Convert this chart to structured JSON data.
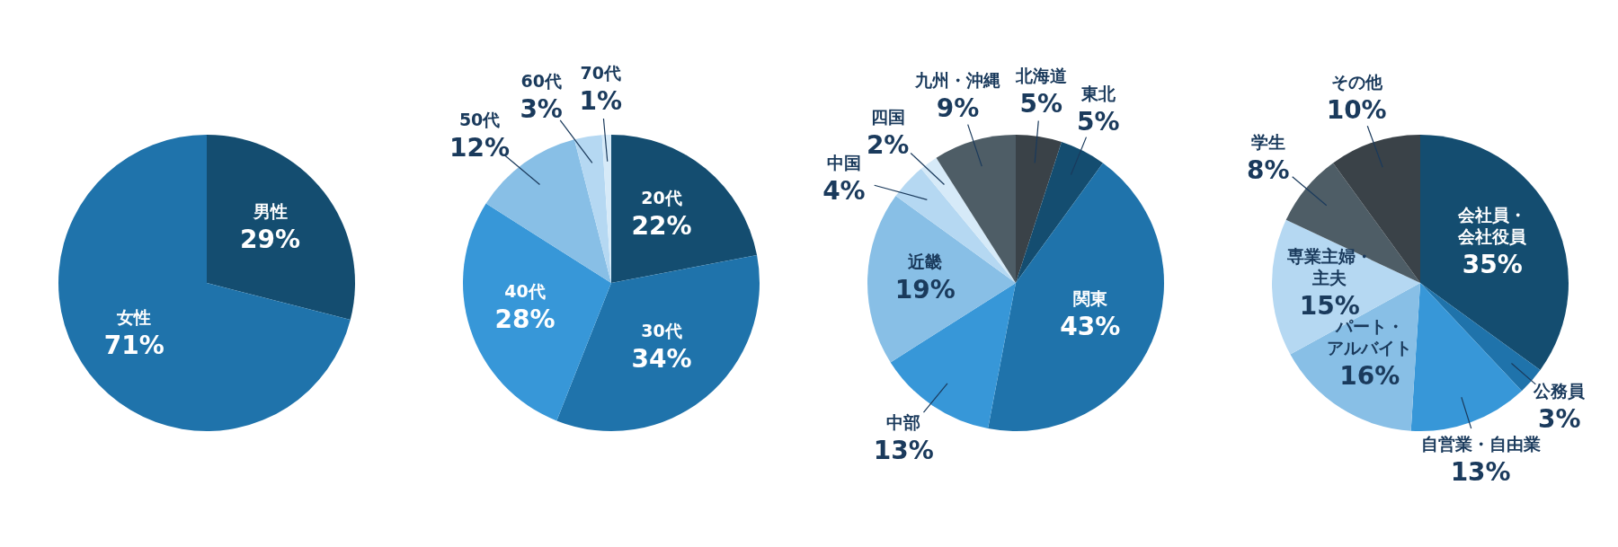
{
  "chart_data": [
    {
      "type": "pie",
      "categories": [
        "男性",
        "女性"
      ],
      "values": [
        29,
        71
      ],
      "colors": [
        "#144d70",
        "#1f73ab"
      ],
      "value_labels": [
        "29%",
        "71%"
      ]
    },
    {
      "type": "pie",
      "categories": [
        "20代",
        "30代",
        "40代",
        "50代",
        "60代",
        "70代"
      ],
      "values": [
        22,
        34,
        28,
        12,
        3,
        1
      ],
      "colors": [
        "#144d70",
        "#1f73ab",
        "#3797d8",
        "#88bfe6",
        "#b5d8f2",
        "#d6eaf8"
      ],
      "value_labels": [
        "22%",
        "34%",
        "28%",
        "12%",
        "3%",
        "1%"
      ]
    },
    {
      "type": "pie",
      "categories": [
        "北海道",
        "東北",
        "関東",
        "中部",
        "近畿",
        "中国",
        "四国",
        "九州・沖縄"
      ],
      "values": [
        5,
        5,
        43,
        13,
        19,
        4,
        2,
        9
      ],
      "colors": [
        "#3a4248",
        "#144d70",
        "#1f73ab",
        "#3797d8",
        "#88bfe6",
        "#b5d8f2",
        "#d6eaf8",
        "#4e5d66"
      ],
      "value_labels": [
        "5%",
        "5%",
        "43%",
        "13%",
        "19%",
        "4%",
        "2%",
        "9%"
      ]
    },
    {
      "type": "pie",
      "categories": [
        "会社員・会社役員",
        "公務員",
        "自営業・自由業",
        "パート・アルバイト",
        "専業主婦・主夫",
        "学生",
        "その他"
      ],
      "values": [
        35,
        3,
        13,
        16,
        15,
        8,
        10
      ],
      "colors": [
        "#144d70",
        "#1f73ab",
        "#3797d8",
        "#88bfe6",
        "#b5d8f2",
        "#4e5d66",
        "#3a4248"
      ],
      "value_labels": [
        "35%",
        "3%",
        "13%",
        "16%",
        "15%",
        "8%",
        "10%"
      ]
    }
  ]
}
